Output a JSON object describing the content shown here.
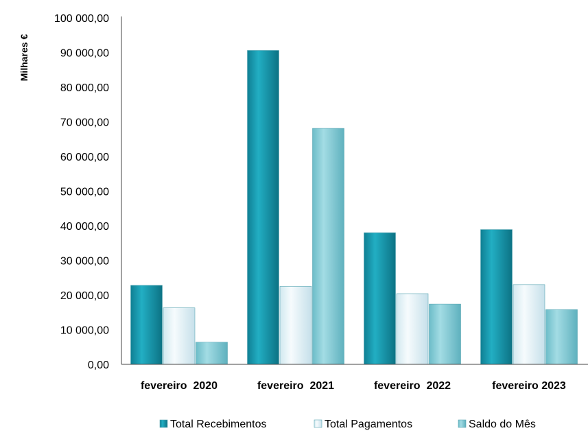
{
  "chart_data": {
    "type": "bar",
    "title": "",
    "xlabel": "",
    "ylabel": "Milhares €",
    "ylim": [
      0,
      100000
    ],
    "y_ticks": [
      "0,00",
      "10 000,00",
      "20 000,00",
      "30 000,00",
      "40 000,00",
      "50 000,00",
      "60 000,00",
      "70 000,00",
      "80 000,00",
      "90 000,00",
      "100 000,00"
    ],
    "y_tick_values": [
      0,
      10000,
      20000,
      30000,
      40000,
      50000,
      60000,
      70000,
      80000,
      90000,
      100000
    ],
    "categories": [
      "fevereiro  2020",
      "fevereiro  2021",
      "fevereiro  2022",
      "fevereiro 2023"
    ],
    "grid": false,
    "legend_position": "bottom",
    "series": [
      {
        "name": "Total Recebimentos",
        "values": [
          22800,
          90600,
          38000,
          38900
        ],
        "color": "#1a9fb5"
      },
      {
        "name": "Total Pagamentos",
        "values": [
          16300,
          22500,
          20400,
          23000
        ],
        "color": "#e4f3f8"
      },
      {
        "name": "Saldo do Mês",
        "values": [
          6400,
          68100,
          17400,
          15800
        ],
        "color": "#88cfd9"
      }
    ]
  }
}
